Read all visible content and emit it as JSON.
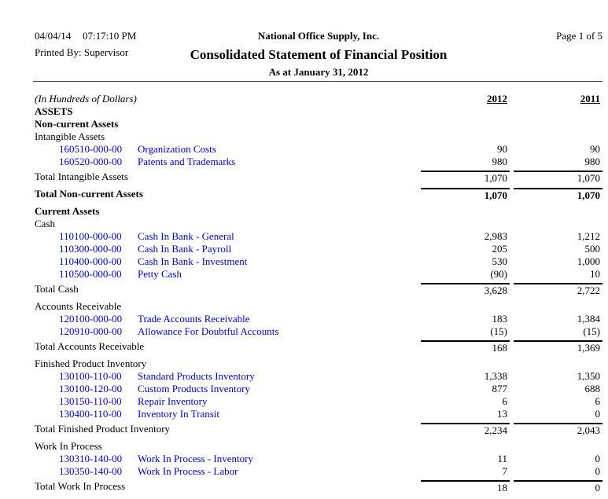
{
  "header": {
    "date": "04/04/14",
    "time": "07:17:10 PM",
    "printed_by_label": "Printed By:",
    "printed_by_value": "Supervisor",
    "company": "National Office Supply, Inc.",
    "title": "Consolidated Statement of Financial Position",
    "subtitle": "As at January 31, 2012",
    "page": "Page 1 of 5"
  },
  "columns": {
    "units": "(In Hundreds of Dollars)",
    "year1": "2012",
    "year2": "2011"
  },
  "colors": {
    "account_link_blue": "#0000CD",
    "text": "#000000",
    "rule": "#3a3a3a"
  },
  "rows": [
    {
      "type": "section",
      "label": "ASSETS"
    },
    {
      "type": "section",
      "label": "Non-current Assets"
    },
    {
      "type": "group",
      "label": "Intangible Assets"
    },
    {
      "type": "account",
      "code": "160510-000-00",
      "desc": "Organization Costs",
      "v1": "90",
      "v2": "90"
    },
    {
      "type": "account",
      "code": "160520-000-00",
      "desc": "Patents and Trademarks",
      "v1": "980",
      "v2": "980"
    },
    {
      "type": "total",
      "label": "Total Intangible Assets",
      "v1": "1,070",
      "v2": "1,070"
    },
    {
      "type": "total-bold",
      "label": "Total Non-current Assets",
      "v1": "1,070",
      "v2": "1,070"
    },
    {
      "type": "section",
      "label": "Current Assets"
    },
    {
      "type": "group",
      "label": "Cash"
    },
    {
      "type": "account",
      "code": "110100-000-00",
      "desc": "Cash In Bank - General",
      "v1": "2,983",
      "v2": "1,212"
    },
    {
      "type": "account",
      "code": "110300-000-00",
      "desc": "Cash In Bank - Payroll",
      "v1": "205",
      "v2": "500"
    },
    {
      "type": "account",
      "code": "110400-000-00",
      "desc": "Cash In Bank - Investment",
      "v1": "530",
      "v2": "1,000"
    },
    {
      "type": "account",
      "code": "110500-000-00",
      "desc": "Petty Cash",
      "v1": "(90)",
      "v2": "10"
    },
    {
      "type": "total",
      "label": "Total Cash",
      "v1": "3,628",
      "v2": "2,722"
    },
    {
      "type": "group",
      "label": "Accounts Receivable"
    },
    {
      "type": "account",
      "code": "120100-000-00",
      "desc": "Trade Accounts Receivable",
      "v1": "183",
      "v2": "1,384"
    },
    {
      "type": "account",
      "code": "120910-000-00",
      "desc": "Allowance For Doubtful Accounts",
      "v1": "(15)",
      "v2": "(15)"
    },
    {
      "type": "total",
      "label": "Total Accounts Receivable",
      "v1": "168",
      "v2": "1,369"
    },
    {
      "type": "group",
      "label": "Finished Product Inventory"
    },
    {
      "type": "account",
      "code": "130100-110-00",
      "desc": "Standard Products Inventory",
      "v1": "1,338",
      "v2": "1,350"
    },
    {
      "type": "account",
      "code": "130100-120-00",
      "desc": "Custom Products Inventory",
      "v1": "877",
      "v2": "688"
    },
    {
      "type": "account",
      "code": "130150-110-00",
      "desc": "Repair Inventory",
      "v1": "6",
      "v2": "6"
    },
    {
      "type": "account",
      "code": "130400-110-00",
      "desc": "Inventory In Transit",
      "v1": "13",
      "v2": "0"
    },
    {
      "type": "total",
      "label": "Total Finished Product Inventory",
      "v1": "2,234",
      "v2": "2,043"
    },
    {
      "type": "group",
      "label": "Work In Process"
    },
    {
      "type": "account",
      "code": "130310-140-00",
      "desc": "Work In Process - Inventory",
      "v1": "11",
      "v2": "0"
    },
    {
      "type": "account",
      "code": "130350-140-00",
      "desc": "Work In Process - Labor",
      "v1": "7",
      "v2": "0"
    },
    {
      "type": "total",
      "label": "Total Work In Process",
      "v1": "18",
      "v2": "0"
    }
  ]
}
